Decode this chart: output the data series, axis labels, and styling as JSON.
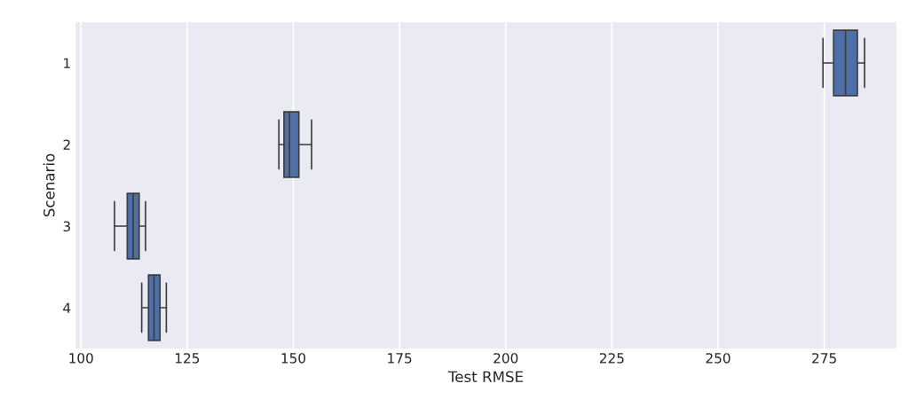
{
  "chart_data": {
    "type": "box",
    "orientation": "horizontal",
    "xlabel": "Test RMSE",
    "ylabel": "Scenario",
    "categories": [
      "1",
      "2",
      "3",
      "4"
    ],
    "color": "#4f6fa8",
    "boxes": [
      {
        "low": 274.7,
        "q1": 277.2,
        "median": 280.0,
        "q3": 282.8,
        "high": 284.5
      },
      {
        "low": 146.6,
        "q1": 147.8,
        "median": 149.1,
        "q3": 151.3,
        "high": 154.3
      },
      {
        "low": 107.9,
        "q1": 110.9,
        "median": 112.3,
        "q3": 113.7,
        "high": 115.2
      },
      {
        "low": 114.3,
        "q1": 115.9,
        "median": 117.2,
        "q3": 118.6,
        "high": 120.1
      }
    ],
    "xlim": [
      98.7,
      292
    ],
    "xticks": [
      100,
      125,
      150,
      175,
      200,
      225,
      250,
      275
    ],
    "grid": "x"
  }
}
